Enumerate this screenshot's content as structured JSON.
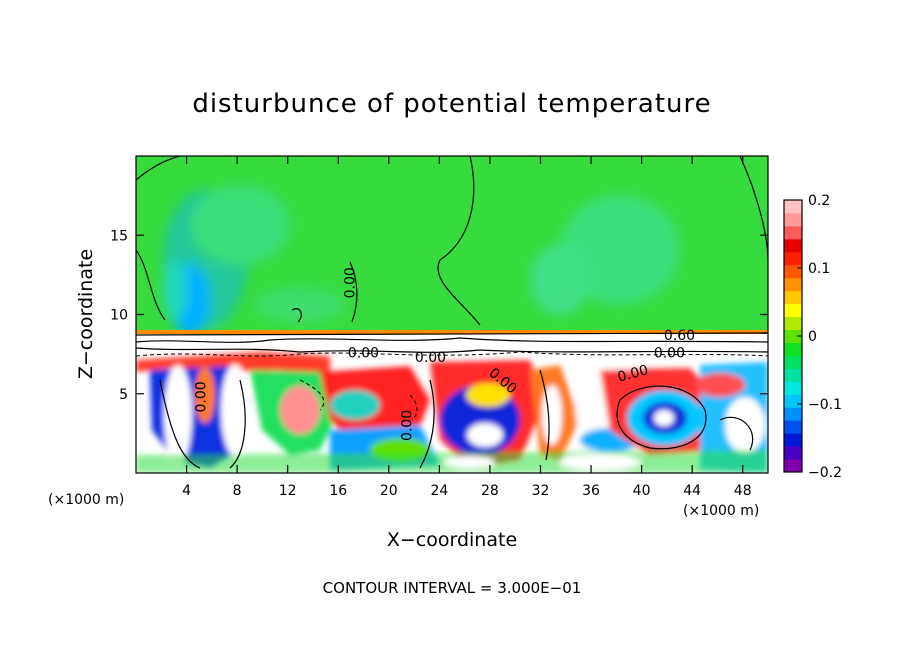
{
  "chart_data": {
    "type": "heatmap",
    "title": "disturbunce of potential temperature",
    "xlabel": "X−coordinate",
    "ylabel": "Z−coordinate",
    "x_unit": "(×1000 m)",
    "y_unit": "(×1000 m)",
    "xlim": [
      0,
      50
    ],
    "ylim": [
      0,
      20
    ],
    "x_ticks": [
      4,
      8,
      12,
      16,
      20,
      24,
      28,
      32,
      36,
      40,
      44,
      48
    ],
    "y_ticks": [
      5,
      10,
      15
    ],
    "footer": "CONTOUR INTERVAL = 3.000E−01",
    "contour_interval": 0.3,
    "contour_labels": [
      {
        "text": "0.00",
        "x": 17.3,
        "z": 12.0,
        "rotate": -90
      },
      {
        "text": "0.00",
        "x": 5.5,
        "z": 4.8,
        "rotate": -90
      },
      {
        "text": "0.00",
        "x": 21.8,
        "z": 3.0,
        "rotate": -90
      },
      {
        "text": "0.00",
        "x": 23.3,
        "z": 7.0,
        "rotate": 0
      },
      {
        "text": "0.00",
        "x": 28.8,
        "z": 5.6,
        "rotate": 40
      },
      {
        "text": "0.00",
        "x": 39.4,
        "z": 6.0,
        "rotate": -15
      },
      {
        "text": "0.00",
        "x": 42.2,
        "z": 7.3,
        "rotate": 0
      },
      {
        "text": "0.60",
        "x": 43.0,
        "z": 8.4,
        "rotate": 0
      },
      {
        "text": "0.00",
        "x": 18.0,
        "z": 7.3,
        "rotate": 0
      }
    ],
    "colorbar": {
      "vmin": -0.2,
      "vmax": 0.2,
      "tick_labels": [
        "0.2",
        "0.1",
        "0",
        "−0.1",
        "−0.2"
      ],
      "colors": [
        "#8000b0",
        "#4b00c8",
        "#0018d8",
        "#0050f0",
        "#0090ff",
        "#00c8ff",
        "#00e8e0",
        "#00e0a0",
        "#00e060",
        "#10e020",
        "#60e000",
        "#b0e800",
        "#ffff00",
        "#ffc800",
        "#ff9000",
        "#ff5800",
        "#ff2000",
        "#e80000",
        "#ff5a5a",
        "#ff9a9a",
        "#ffc0c0"
      ]
    }
  }
}
